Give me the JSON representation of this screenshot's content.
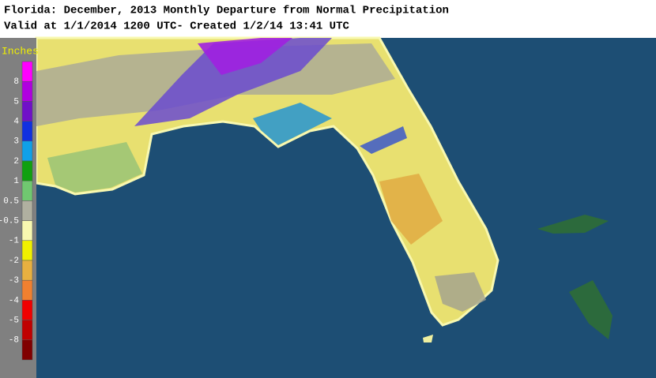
{
  "header": {
    "title": "Florida: December, 2013 Monthly Departure from Normal Precipitation",
    "subtitle": "Valid at 1/1/2014 1200 UTC- Created 1/2/14 13:41 UTC"
  },
  "legend": {
    "unit": "Inches",
    "labels": [
      "8",
      "5",
      "4",
      "3",
      "2",
      "1",
      "0.5",
      "-0.5",
      "-1",
      "-2",
      "-3",
      "-4",
      "-5",
      "-8"
    ],
    "colors": [
      "#ff00ff",
      "#b000e0",
      "#7010c8",
      "#1030e0",
      "#10a0e8",
      "#10a010",
      "#70c870",
      "#b0b0a0",
      "#f8f8b0",
      "#f0f000",
      "#e8b040",
      "#f08030",
      "#f00000",
      "#c00000",
      "#800000"
    ]
  }
}
